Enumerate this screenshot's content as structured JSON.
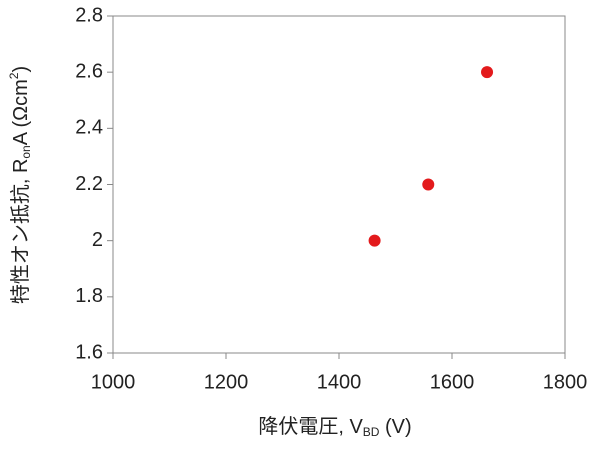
{
  "chart_data": {
    "type": "scatter",
    "x": [
      1463,
      1558,
      1662
    ],
    "values": [
      2.0,
      2.2,
      2.6
    ],
    "color": "#e31a1c",
    "xlim": [
      1000,
      1800
    ],
    "xticks": [
      1000,
      1200,
      1400,
      1600,
      1800
    ],
    "ylim": [
      1.6,
      2.8
    ],
    "yticks": [
      1.6,
      1.8,
      2,
      2.2,
      2.4,
      2.6,
      2.8
    ],
    "xlabel": {
      "main": "降伏電圧, V",
      "sub": "BD",
      "end": " (V)"
    },
    "ylabel": {
      "main": "特性オン抵抗, R",
      "sub": "on",
      "mid": "A (Ωcm",
      "sup": "2",
      "end": ")"
    }
  }
}
